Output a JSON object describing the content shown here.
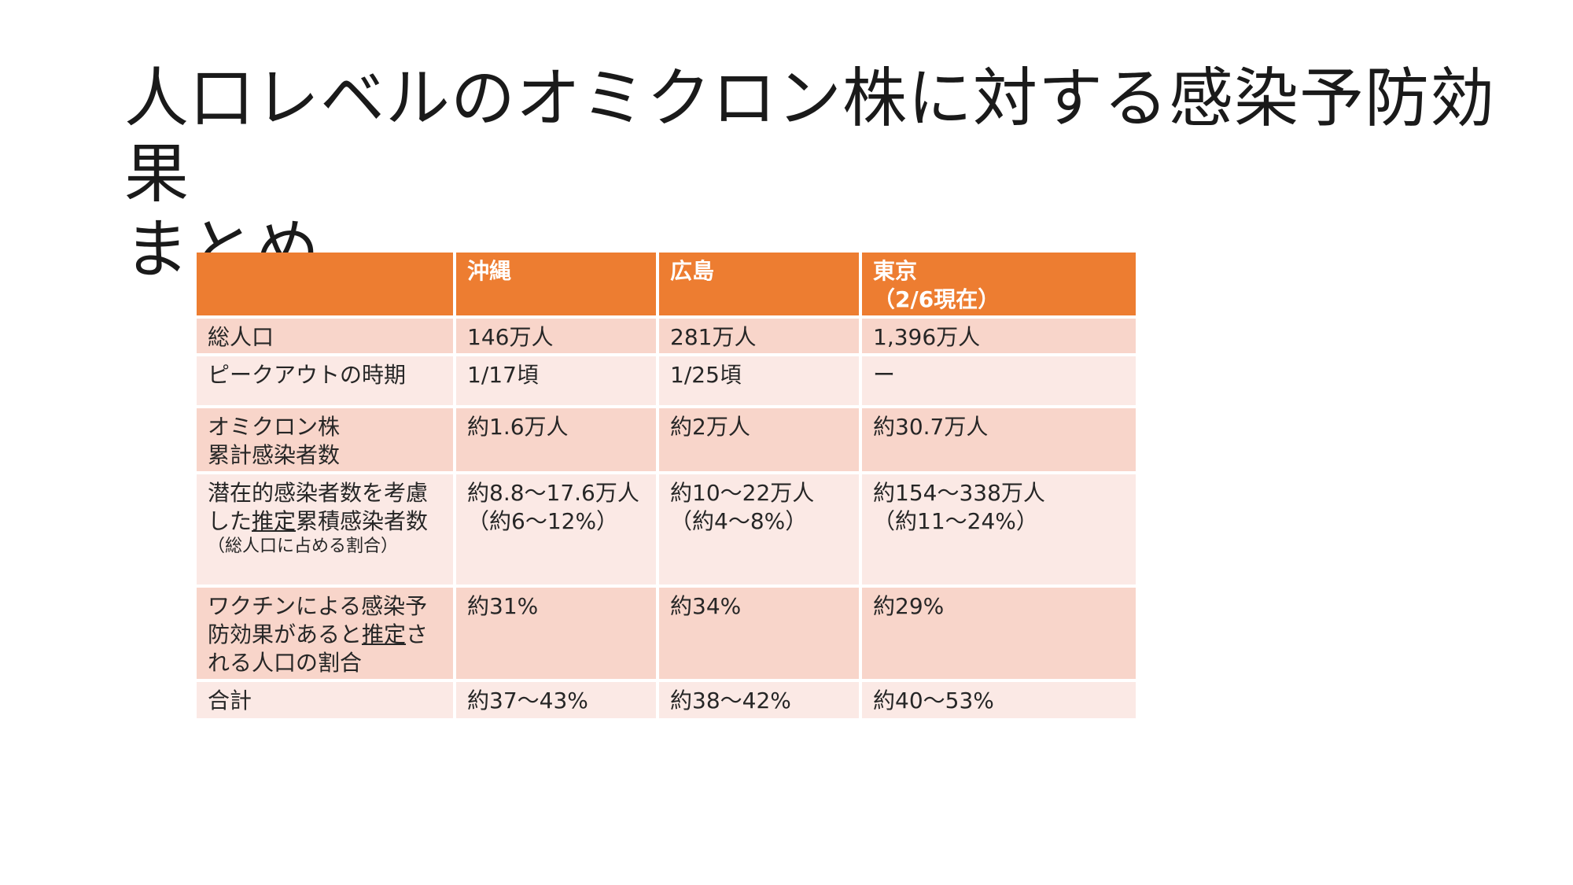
{
  "title": {
    "line1": "人口レベルのオミクロン株に対する感染予防効果",
    "line2": "まとめ"
  },
  "table": {
    "headers": {
      "blank": "",
      "okinawa": "沖縄",
      "hiroshima": "広島",
      "tokyo": "東京",
      "tokyo_note": "（2/6現在）"
    },
    "rows": {
      "population": {
        "label": "総人口",
        "okinawa": "146万人",
        "hiroshima": "281万人",
        "tokyo": "1,396万人"
      },
      "peakout": {
        "label": "ピークアウトの時期",
        "okinawa": "1/17頃",
        "hiroshima": "1/25頃",
        "tokyo": "ー"
      },
      "omicron_cases": {
        "label_line1": "オミクロン株",
        "label_line2": "累計感染者数",
        "okinawa": "約1.6万人",
        "hiroshima": "約2万人",
        "tokyo": "約30.7万人"
      },
      "estimated_cases": {
        "label_part1": "潜在的感染者数を考慮",
        "label_part2": "した",
        "label_underlined": "推定",
        "label_part3": "累積感染者数",
        "label_note": "（総人口に占める割合）",
        "okinawa_line1": "約8.8～17.6万人",
        "okinawa_line2": "（約6～12%）",
        "hiroshima_line1": "約10～22万人",
        "hiroshima_line2": "（約4～8%）",
        "tokyo_line1": "約154～338万人",
        "tokyo_line2": "（約11～24%）"
      },
      "vaccine": {
        "label_part1": "ワクチンによる感染予防効果があると",
        "label_underlined": "推定",
        "label_part2": "される人口の割合",
        "okinawa": "約31%",
        "hiroshima": "約34%",
        "tokyo": "約29%"
      },
      "total": {
        "label": "合計",
        "okinawa": "約37～43%",
        "hiroshima": "約38～42%",
        "tokyo": "約40～53%"
      }
    }
  },
  "colors": {
    "header": "#ed7d31",
    "row_dark": "#f8d5ca",
    "row_light": "#fbe9e5"
  }
}
